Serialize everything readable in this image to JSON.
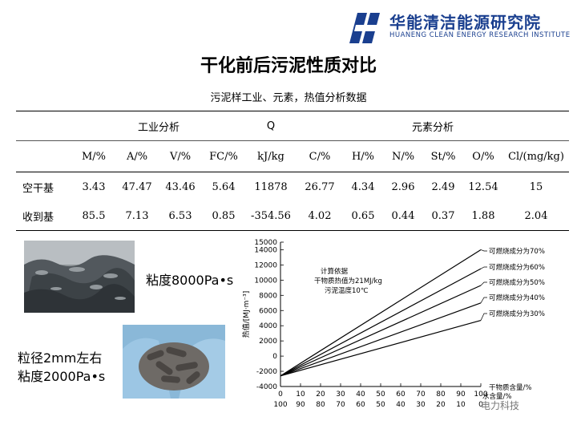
{
  "header": {
    "org_cn": "华能清洁能源研究院",
    "org_en": "HUANENG CLEAN ENERGY RESEARCH INSTITUTE",
    "brand_color": "#1a3f8f"
  },
  "title": "干化前后污泥性质对比",
  "subtitle": "污泥样工业、元素，热值分析数据",
  "table": {
    "groups": [
      "工业分析",
      "Q",
      "元素分析"
    ],
    "columns": [
      "M/%",
      "A/%",
      "V/%",
      "FC/%",
      "kJ/kg",
      "C/%",
      "H/%",
      "N/%",
      "St/%",
      "O/%",
      "Cl/(mg/kg)"
    ],
    "rows": [
      {
        "label": "空干基",
        "values": [
          "3.43",
          "47.47",
          "43.46",
          "5.64",
          "11878",
          "26.77",
          "4.34",
          "2.96",
          "2.49",
          "12.54",
          "15"
        ]
      },
      {
        "label": "收到基",
        "values": [
          "85.5",
          "7.13",
          "6.53",
          "0.85",
          "-354.56",
          "4.02",
          "0.65",
          "0.44",
          "0.37",
          "1.88",
          "2.04"
        ]
      }
    ]
  },
  "captions": {
    "photo1": "粘度8000Pa•s",
    "photo2_line1": "粒径2mm左右",
    "photo2_line2": "粘度2000Pa•s"
  },
  "chart_data": {
    "type": "line",
    "ylabel": "热值/[MJ·m⁻³]",
    "ylim": [
      -4000,
      15000
    ],
    "yticks": [
      -4000,
      -2000,
      0,
      2000,
      4000,
      6000,
      8000,
      10000,
      12000,
      14000,
      15000
    ],
    "x_ticks_top": [
      0,
      10,
      20,
      30,
      40,
      50,
      60,
      70,
      80,
      90,
      100
    ],
    "x_ticks_bottom": [
      100,
      90,
      80,
      70,
      60,
      50,
      40,
      30,
      20,
      10,
      0
    ],
    "xlabel_top": "干物质含量/%",
    "xlabel_bottom": "水含量/%",
    "annotation": [
      "计算依据",
      "干物质热值为21MJ/kg",
      "污泥温度10℃"
    ],
    "series": [
      {
        "name": "可燃烧成分为70%",
        "x": [
          0,
          100
        ],
        "y": [
          -2600,
          14000
        ]
      },
      {
        "name": "可燃烧成分为60%",
        "x": [
          0,
          100
        ],
        "y": [
          -2600,
          11500
        ]
      },
      {
        "name": "可燃烧成分为50%",
        "x": [
          0,
          100
        ],
        "y": [
          -2600,
          9300
        ]
      },
      {
        "name": "可燃烧成分为40%",
        "x": [
          0,
          100
        ],
        "y": [
          -2600,
          7000
        ]
      },
      {
        "name": "可燃烧成分为30%",
        "x": [
          0,
          100
        ],
        "y": [
          -2600,
          4700
        ]
      }
    ]
  },
  "watermark": "电力科技"
}
